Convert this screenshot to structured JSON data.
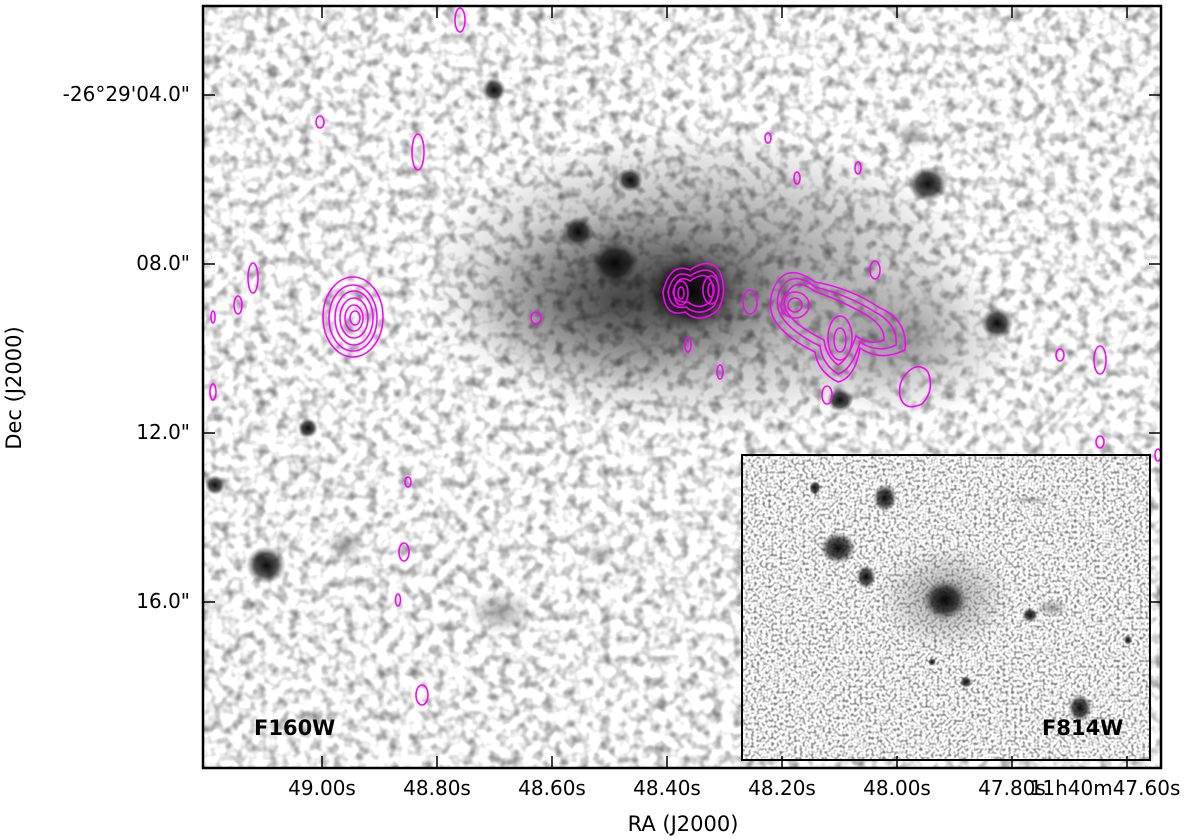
{
  "figure": {
    "xlabel": "RA (J2000)",
    "ylabel": "Dec (J2000)",
    "x_ticks": [
      "49.00s",
      "48.80s",
      "48.60s",
      "48.40s",
      "48.20s",
      "48.00s",
      "47.80s",
      "11h40m47.60s"
    ],
    "y_ticks": [
      "-26°29'04.0\"",
      "08.0\"",
      "12.0\"",
      "16.0\""
    ],
    "main_band": "F160W",
    "inset_band": "F814W",
    "colors": {
      "contour": "#ff00ff",
      "frame": "#000000",
      "background": "#ffffff"
    },
    "image_type": "grayscale astronomical image with radio contours, inset panel"
  }
}
